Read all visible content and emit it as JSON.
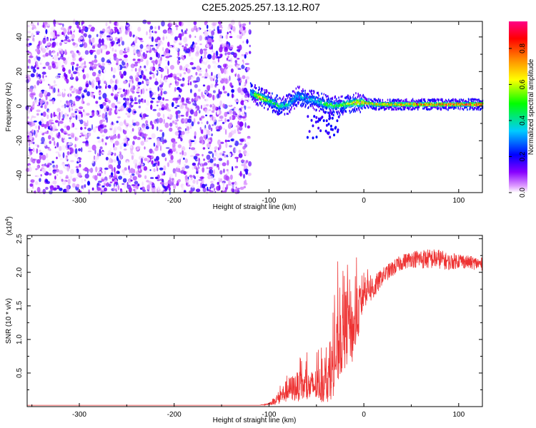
{
  "title": "C2E5.2025.257.13.12.R07",
  "chart_data": [
    {
      "type": "heatmap",
      "xlabel": "Height of straight line (km)",
      "ylabel": "Frequency (Hz)",
      "xlim": [
        -355,
        125
      ],
      "ylim": [
        -50,
        49
      ],
      "xticks": [
        -300,
        -200,
        -100,
        0,
        100
      ],
      "yticks": [
        -40,
        -20,
        0,
        20,
        40
      ],
      "colorbar": {
        "label": "Normalized spectral amplitude",
        "range": [
          0,
          0.95
        ],
        "ticks": [
          0.0,
          0.2,
          0.4,
          0.6,
          0.8
        ],
        "colormap": [
          "#ffffff",
          "#8800ff",
          "#0000ff",
          "#00ccff",
          "#00ff00",
          "#ffff00",
          "#ff8800",
          "#ff0000",
          "#ff0088"
        ]
      },
      "noise_region_x": [
        -355,
        -120
      ],
      "noise_amplitude_range": [
        0.0,
        0.2
      ],
      "signal_centerline": [
        {
          "x": -120,
          "freq": 8,
          "amp": 0.35
        },
        {
          "x": -110,
          "freq": 5,
          "amp": 0.75
        },
        {
          "x": -100,
          "freq": 3,
          "amp": 0.55
        },
        {
          "x": -90,
          "freq": 0,
          "amp": 0.45
        },
        {
          "x": -80,
          "freq": 1,
          "amp": 0.4
        },
        {
          "x": -70,
          "freq": 6,
          "amp": 0.35
        },
        {
          "x": -60,
          "freq": 4,
          "amp": 0.4
        },
        {
          "x": -50,
          "freq": 3,
          "amp": 0.4
        },
        {
          "x": -40,
          "freq": 1,
          "amp": 0.55
        },
        {
          "x": -30,
          "freq": 0,
          "amp": 0.5
        },
        {
          "x": -20,
          "freq": 1,
          "amp": 0.55
        },
        {
          "x": -10,
          "freq": 2,
          "amp": 0.7
        },
        {
          "x": 0,
          "freq": 2,
          "amp": 0.75
        },
        {
          "x": 10,
          "freq": 1,
          "amp": 0.75
        },
        {
          "x": 30,
          "freq": 1,
          "amp": 0.8
        },
        {
          "x": 60,
          "freq": 1,
          "amp": 0.85
        },
        {
          "x": 90,
          "freq": 1,
          "amp": 0.9
        },
        {
          "x": 125,
          "freq": 1,
          "amp": 0.9
        }
      ]
    },
    {
      "type": "line",
      "xlabel": "Height of straight line (km)",
      "ylabel": "SNR (10 * v/v)",
      "y_multiplier": "(x10",
      "y_multiplier_exp": "4",
      "y_multiplier_close": ")",
      "xlim": [
        -355,
        125
      ],
      "ylim": [
        0,
        2.55
      ],
      "xticks": [
        -300,
        -200,
        -100,
        0,
        100
      ],
      "yticks": [
        0.5,
        1.0,
        1.5,
        2.0,
        2.5
      ],
      "ytick_labels": [
        "0.5",
        "1.0",
        "1.5",
        "2.0",
        "2.5"
      ],
      "color": "#ee3333",
      "series": [
        {
          "name": "SNR",
          "x": [
            -355,
            -200,
            -110,
            -100,
            -95,
            -88,
            -80,
            -70,
            -60,
            -50,
            -40,
            -35,
            -30,
            -25,
            -20,
            -15,
            -12,
            -10,
            -5,
            0,
            5,
            10,
            15,
            20,
            25,
            30,
            40,
            50,
            60,
            70,
            80,
            90,
            100,
            110,
            125
          ],
          "y": [
            0.02,
            0.02,
            0.02,
            0.04,
            0.08,
            0.15,
            0.25,
            0.3,
            0.28,
            0.32,
            0.35,
            0.5,
            0.7,
            1.0,
            1.15,
            1.3,
            1.1,
            1.2,
            1.45,
            1.75,
            1.8,
            1.75,
            1.85,
            1.95,
            2.0,
            2.05,
            2.15,
            2.2,
            2.2,
            2.2,
            2.2,
            2.15,
            2.18,
            2.15,
            2.12
          ],
          "noise": [
            0,
            0,
            0,
            0.02,
            0.05,
            0.12,
            0.18,
            0.22,
            0.22,
            0.25,
            0.3,
            0.4,
            0.5,
            0.6,
            0.6,
            0.6,
            0.5,
            0.45,
            0.4,
            0.3,
            0.25,
            0.2,
            0.15,
            0.12,
            0.12,
            0.12,
            0.12,
            0.12,
            0.15,
            0.15,
            0.15,
            0.12,
            0.12,
            0.1,
            0.1
          ]
        }
      ]
    }
  ]
}
